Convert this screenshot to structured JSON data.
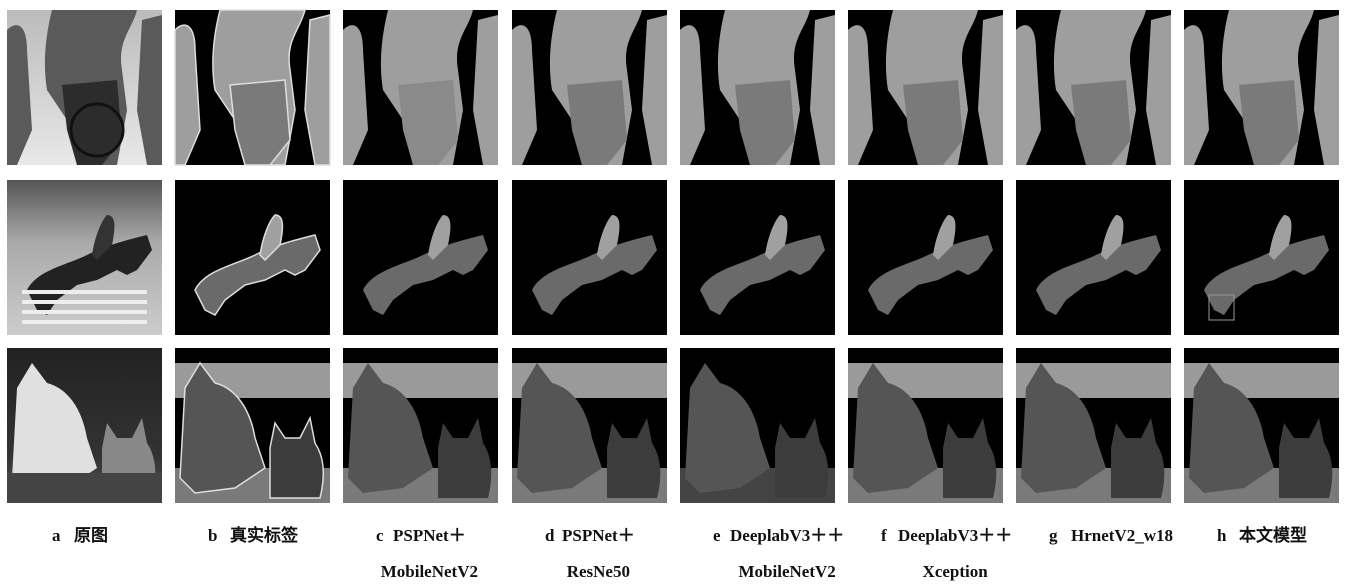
{
  "captions": [
    {
      "letter": "a",
      "lines": [
        "原图"
      ]
    },
    {
      "letter": "b",
      "lines": [
        "真实标签"
      ]
    },
    {
      "letter": "c",
      "lines": [
        "PSPNet＋",
        "MobileNetV2"
      ]
    },
    {
      "letter": "d",
      "lines": [
        "PSPNet＋",
        "ResNe50"
      ]
    },
    {
      "letter": "e",
      "lines": [
        "DeeplabV3＋＋",
        "MobileNetV2"
      ]
    },
    {
      "letter": "f",
      "lines": [
        "DeeplabV3＋＋",
        "Xception"
      ]
    },
    {
      "letter": "g",
      "lines": [
        "HrnetV2_w18"
      ]
    },
    {
      "letter": "h",
      "lines": [
        "本文模型"
      ]
    }
  ]
}
